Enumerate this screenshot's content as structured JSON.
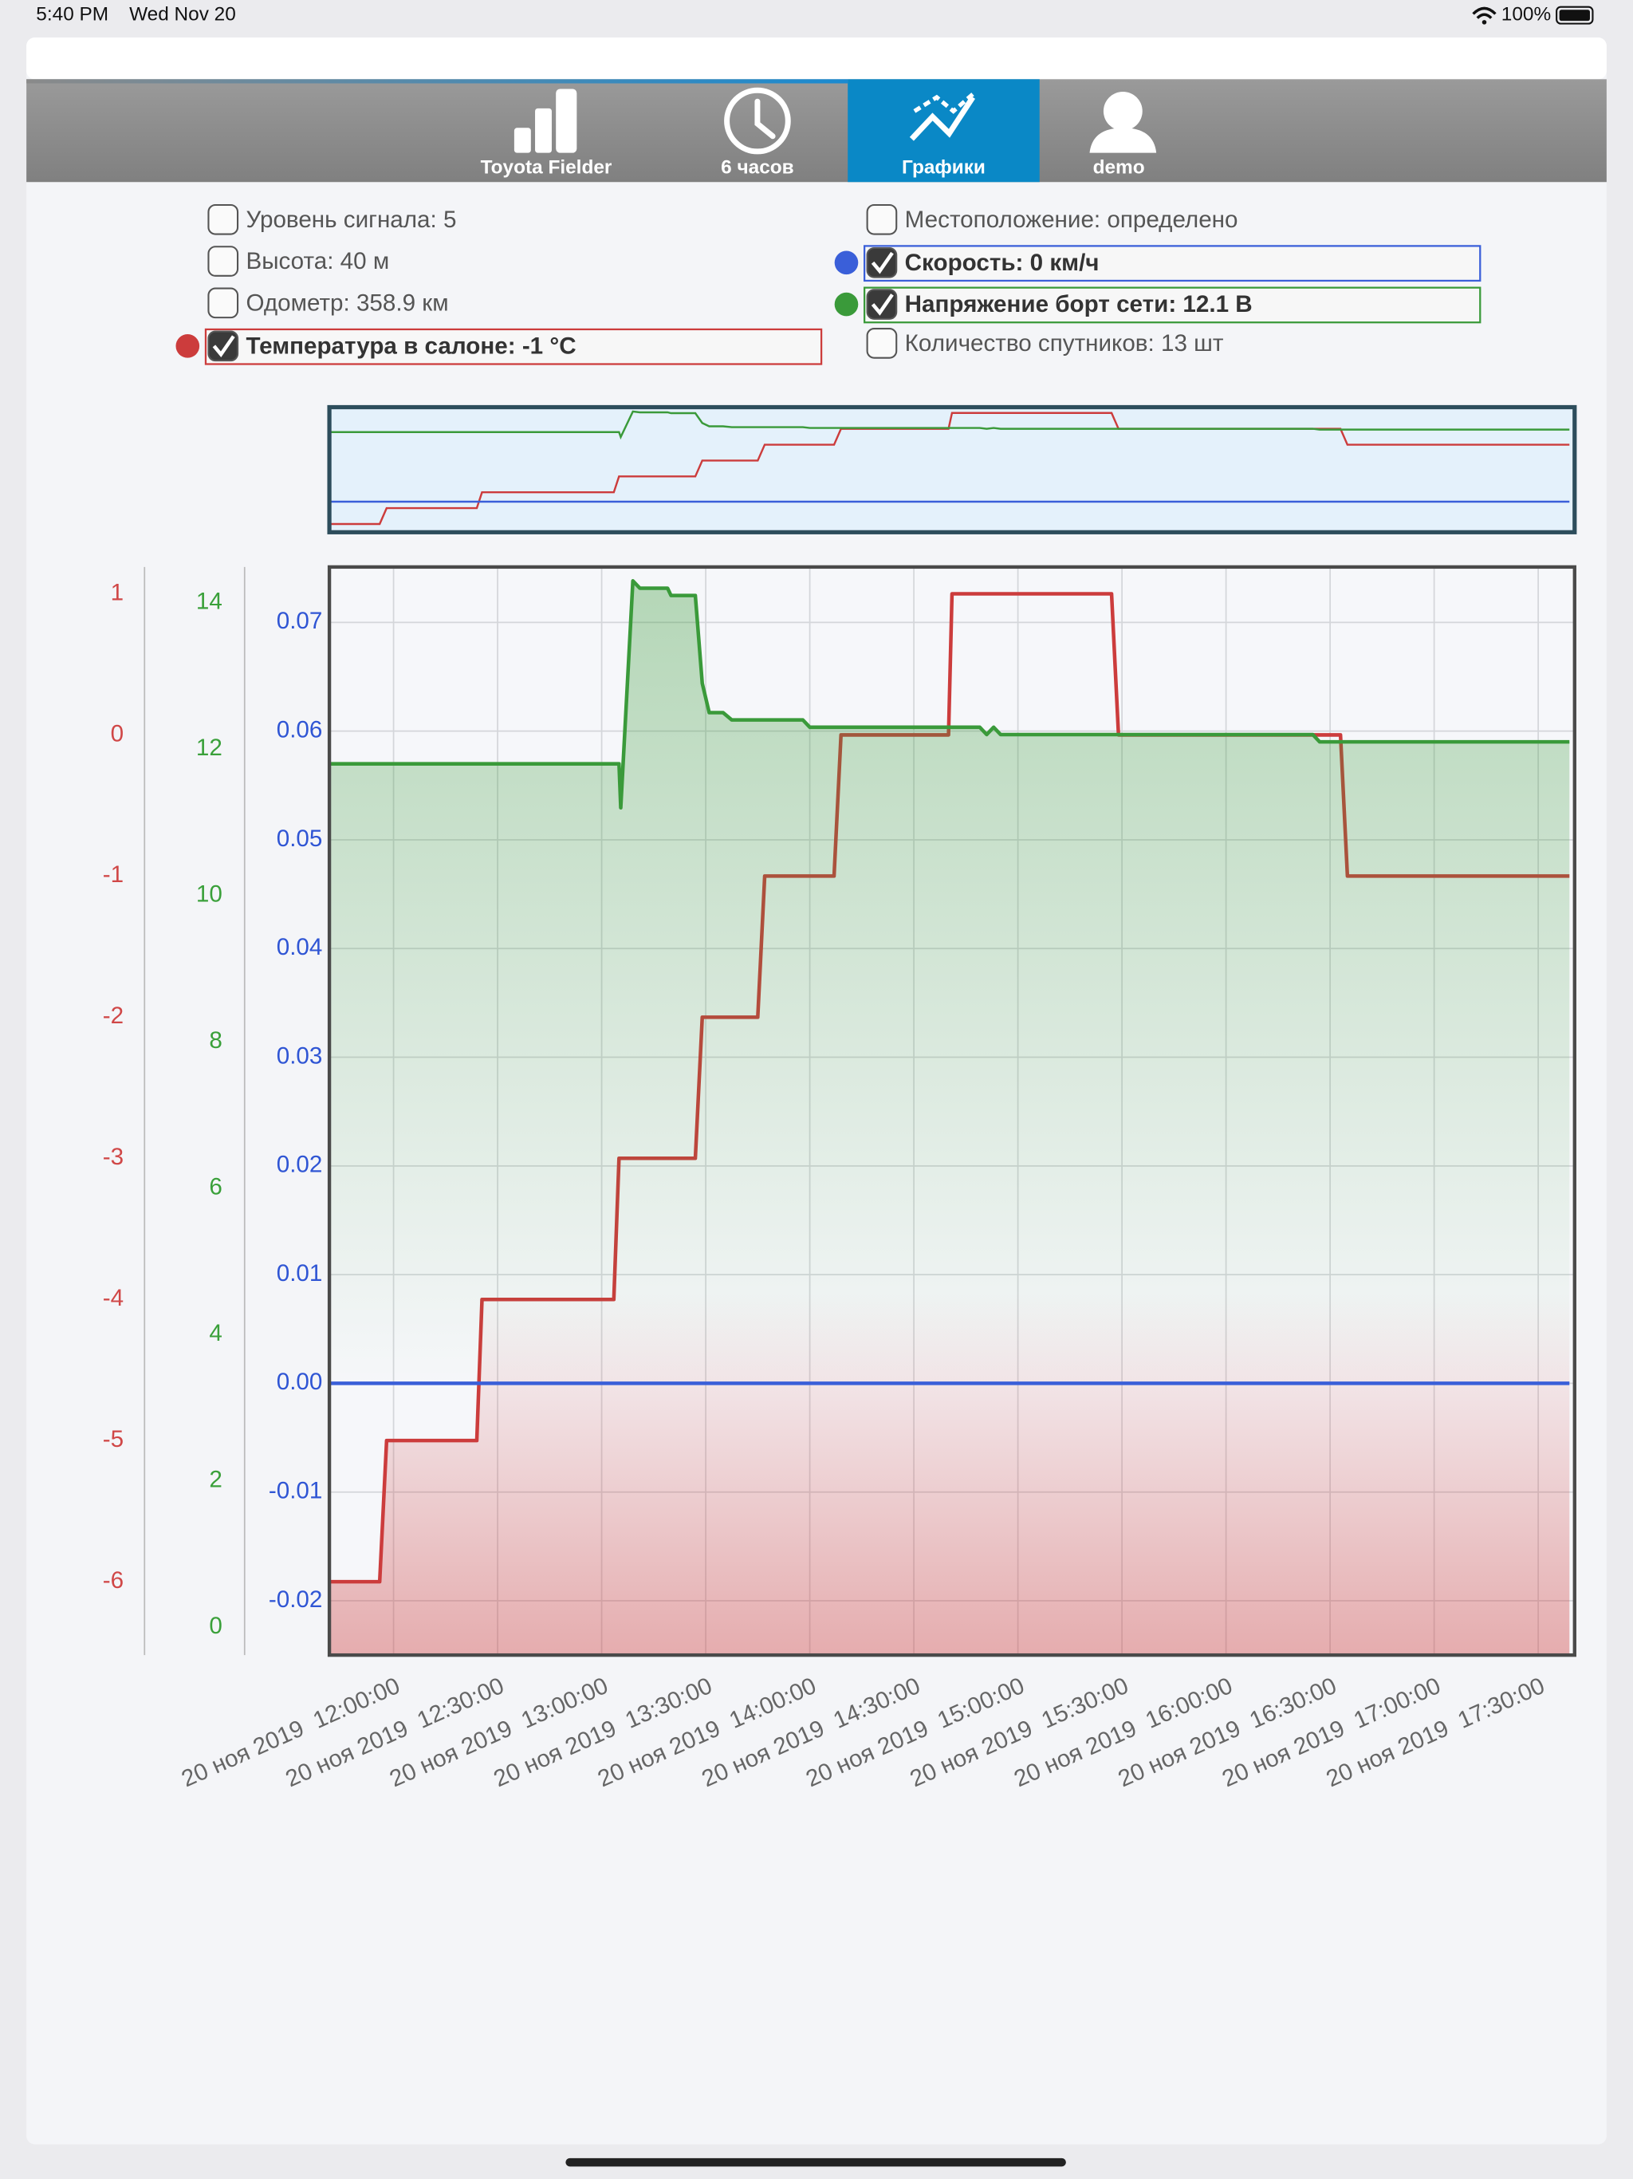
{
  "status_bar": {
    "time": "5:40 PM",
    "date": "Wed Nov 20",
    "battery": "100%"
  },
  "tabs": [
    {
      "label": "Toyota Fielder",
      "active": false
    },
    {
      "label": "6 часов",
      "active": false
    },
    {
      "label": "Графики",
      "active": true
    },
    {
      "label": "demo",
      "active": false
    }
  ],
  "parameters": [
    {
      "label": "Уровень сигнала: 5",
      "checked": false
    },
    {
      "label": "Высота: 40 м",
      "checked": false
    },
    {
      "label": "Одометр: 358.9 км",
      "checked": false
    },
    {
      "label": "Местоположение: определено",
      "checked": false
    },
    {
      "label": "Количество спутников: 13 шт",
      "checked": false
    }
  ],
  "chart_data": {
    "type": "line",
    "grid": true,
    "xlim": [
      "2019-11-20T11:41:30",
      "2019-11-20T17:40:30"
    ],
    "xticks": [
      {
        "value": "2019-11-20T12:00:00",
        "label": "20 ноя 2019  12:00:00"
      },
      {
        "value": "2019-11-20T12:30:00",
        "label": "20 ноя 2019  12:30:00"
      },
      {
        "value": "2019-11-20T13:00:00",
        "label": "20 ноя 2019  13:00:00"
      },
      {
        "value": "2019-11-20T13:30:00",
        "label": "20 ноя 2019  13:30:00"
      },
      {
        "value": "2019-11-20T14:00:00",
        "label": "20 ноя 2019  14:00:00"
      },
      {
        "value": "2019-11-20T14:30:00",
        "label": "20 ноя 2019  14:30:00"
      },
      {
        "value": "2019-11-20T15:00:00",
        "label": "20 ноя 2019  15:00:00"
      },
      {
        "value": "2019-11-20T15:30:00",
        "label": "20 ноя 2019  15:30:00"
      },
      {
        "value": "2019-11-20T16:00:00",
        "label": "20 ноя 2019  16:00:00"
      },
      {
        "value": "2019-11-20T16:30:00",
        "label": "20 ноя 2019  16:30:00"
      },
      {
        "value": "2019-11-20T17:00:00",
        "label": "20 ноя 2019  17:00:00"
      },
      {
        "value": "2019-11-20T17:30:00",
        "label": "20 ноя 2019  17:30:00"
      }
    ],
    "ylim": [
      -0.025,
      0.0751
    ],
    "yticks": [
      -0.02,
      -0.01,
      {
        "value": 0,
        "label": "0.00"
      },
      0.01,
      0.02,
      0.03,
      0.04,
      0.05,
      0.06,
      0.07
    ],
    "y2lim": [
      -0.38,
      14.49
    ],
    "y2ticks": [
      0,
      2,
      4,
      6,
      8,
      10,
      12,
      14
    ],
    "y3lim": [
      -6.52,
      1.19
    ],
    "y3ticks": [
      -6,
      -5,
      -4,
      -3,
      -2,
      -1,
      0,
      1
    ],
    "series": [
      {
        "name": "Температура в салоне: -1 °C",
        "color": "#cc3c3c",
        "axis": "y3",
        "x": [
          "2019-11-20T11:41:30",
          "2019-11-20T11:56:00",
          "2019-11-20T11:58:00",
          "2019-11-20T12:24:00",
          "2019-11-20T12:25:30",
          "2019-11-20T13:03:30",
          "2019-11-20T13:05:00",
          "2019-11-20T13:27:00",
          "2019-11-20T13:29:00",
          "2019-11-20T13:45:00",
          "2019-11-20T13:47:00",
          "2019-11-20T14:07:00",
          "2019-11-20T14:09:00",
          "2019-11-20T14:40:00",
          "2019-11-20T14:41:00",
          "2019-11-20T15:27:00",
          "2019-11-20T15:29:00",
          "2019-11-20T16:33:00",
          "2019-11-20T16:35:00",
          "2019-11-20T17:39:00"
        ],
        "values": [
          -6,
          -6,
          -5,
          -5,
          -4,
          -4,
          -3,
          -3,
          -2,
          -2,
          -1,
          -1,
          0,
          0,
          1,
          1,
          0,
          0,
          -1,
          -1
        ]
      },
      {
        "name": "Скорость: 0 км/ч",
        "color": "#3a5fd9",
        "axis": "y",
        "x": [
          "2019-11-20T11:41:30",
          "2019-11-20T17:39:00"
        ],
        "values": [
          0,
          0
        ]
      },
      {
        "name": "Напряжение борт сети: 12.1 В",
        "color": "#3a9a3a",
        "axis": "y2",
        "x": [
          "2019-11-20T11:41:30",
          "2019-11-20T13:05:00",
          "2019-11-20T13:05:30",
          "2019-11-20T13:09:00",
          "2019-11-20T13:11:00",
          "2019-11-20T13:19:00",
          "2019-11-20T13:20:00",
          "2019-11-20T13:27:00",
          "2019-11-20T13:29:00",
          "2019-11-20T13:31:00",
          "2019-11-20T13:35:00",
          "2019-11-20T13:37:30",
          "2019-11-20T13:58:00",
          "2019-11-20T14:00:00",
          "2019-11-20T14:49:00",
          "2019-11-20T14:51:00",
          "2019-11-20T14:53:00",
          "2019-11-20T14:55:00",
          "2019-11-20T16:25:00",
          "2019-11-20T16:27:00",
          "2019-11-20T17:39:00"
        ],
        "values": [
          11.8,
          11.8,
          11.2,
          14.3,
          14.2,
          14.2,
          14.1,
          14.1,
          12.9,
          12.5,
          12.5,
          12.4,
          12.4,
          12.3,
          12.3,
          12.2,
          12.3,
          12.2,
          12.2,
          12.1,
          12.1
        ]
      }
    ]
  }
}
